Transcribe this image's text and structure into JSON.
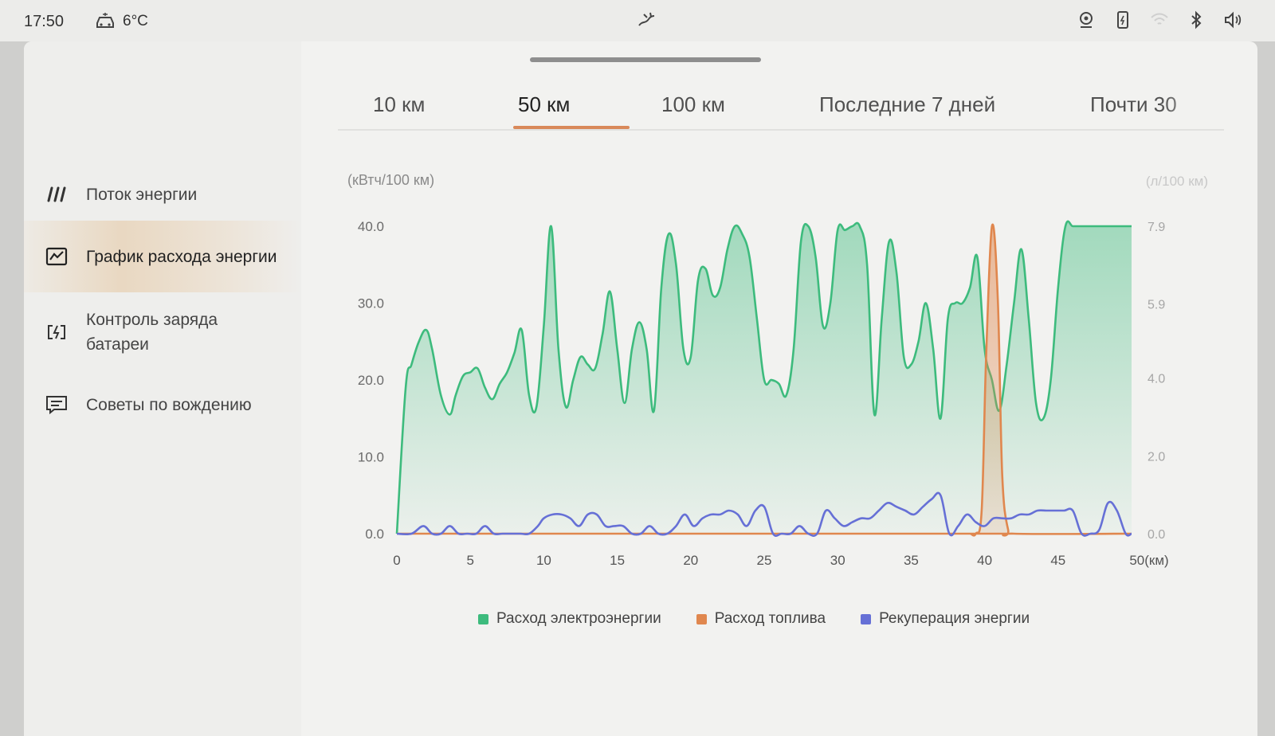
{
  "status_bar": {
    "time": "17:50",
    "temperature": "6°C",
    "icons": [
      "car-icon",
      "fan-icon",
      "camera-icon",
      "phone-battery-icon",
      "wifi-icon",
      "bluetooth-icon",
      "volume-icon"
    ]
  },
  "sidebar": {
    "items": [
      {
        "label": "Поток энергии",
        "icon": "energy-flow-icon",
        "active": false
      },
      {
        "label": "График расхода энергии",
        "icon": "chart-icon",
        "active": true
      },
      {
        "label": "Контроль заряда батареи",
        "icon": "battery-charge-icon",
        "active": false
      },
      {
        "label": "Советы по вождению",
        "icon": "tips-message-icon",
        "active": false
      }
    ]
  },
  "tabs": [
    {
      "label": "10 км",
      "active": false
    },
    {
      "label": "50 км",
      "active": true
    },
    {
      "label": "100 км",
      "active": false
    },
    {
      "label": "Последние 7 дней",
      "active": false
    },
    {
      "label": "Почти 30",
      "active": false
    }
  ],
  "colors": {
    "electric": "#3dbb7d",
    "fuel": "#e0874e",
    "regen": "#6670d6",
    "accent": "#d9895a"
  },
  "chart_data": {
    "type": "line",
    "left_unit": "(кВтч/100 км)",
    "right_unit": "(л/100 км)",
    "x_unit": "(км)",
    "xlim": [
      0,
      50
    ],
    "ylim_left": [
      0,
      40
    ],
    "ylim_right": [
      0,
      7.9
    ],
    "x_ticks": [
      0,
      5,
      10,
      15,
      20,
      25,
      30,
      35,
      40,
      45,
      50
    ],
    "x_tick_labels": [
      "0",
      "5",
      "10",
      "15",
      "20",
      "25",
      "30",
      "35",
      "40",
      "45",
      "50(км)"
    ],
    "y_ticks_left": [
      "0.0",
      "10.0",
      "20.0",
      "30.0",
      "40.0"
    ],
    "y_ticks_right": [
      "0.0",
      "2.0",
      "4.0",
      "5.9",
      "7.9"
    ],
    "grid": false,
    "legend_position": "bottom",
    "series": [
      {
        "name": "Расход электроэнергии",
        "axis": "left",
        "x": [
          0,
          0.6,
          1.0,
          1.5,
          2.0,
          2.4,
          3.0,
          3.6,
          4.0,
          4.5,
          5.0,
          5.5,
          6.0,
          6.5,
          7.0,
          7.5,
          8.0,
          8.5,
          9.0,
          9.5,
          10.0,
          10.5,
          11.0,
          11.5,
          12.0,
          12.5,
          13.0,
          13.5,
          14.0,
          14.5,
          15.0,
          15.5,
          16.0,
          16.5,
          17.0,
          17.5,
          18.0,
          18.5,
          19.0,
          19.5,
          20.0,
          20.5,
          21.0,
          21.5,
          22.0,
          22.5,
          23.0,
          23.5,
          24.0,
          24.5,
          25.0,
          25.5,
          26.0,
          26.5,
          27.0,
          27.5,
          28.0,
          28.5,
          29.0,
          29.5,
          30.0,
          30.5,
          31.0,
          31.5,
          32.0,
          32.5,
          33.0,
          33.5,
          34.0,
          34.5,
          35.0,
          35.5,
          36.0,
          36.5,
          37.0,
          37.5,
          38.0,
          38.5,
          39.0,
          39.5,
          40.0,
          40.5,
          41.0,
          41.5,
          42.0,
          42.5,
          43.0,
          43.5,
          44.0,
          44.5,
          45.0,
          45.5,
          46.0,
          46.5,
          47.0,
          47.5,
          48.0,
          48.5,
          49.0,
          49.5,
          50.0
        ],
        "values": [
          0,
          19,
          22,
          25,
          26.5,
          24,
          18,
          15.5,
          18,
          20.5,
          21,
          21.5,
          19,
          17.5,
          19.5,
          21,
          23.5,
          26.5,
          18,
          16.5,
          27,
          40,
          24,
          16.5,
          20,
          23,
          22,
          21.5,
          26,
          31.5,
          24,
          17,
          24,
          27.5,
          24,
          16,
          32,
          39,
          35,
          24,
          23,
          33,
          34.5,
          31,
          32,
          37,
          40,
          39,
          36,
          28,
          20,
          20,
          19.5,
          18,
          24,
          38,
          40,
          36,
          27,
          30,
          39.5,
          39.5,
          40,
          40,
          35,
          15.5,
          28,
          38,
          34,
          23,
          22,
          25,
          30,
          24,
          15,
          28,
          30,
          30,
          32,
          36,
          24,
          20,
          16,
          22,
          30,
          37,
          28,
          17,
          15,
          20,
          32,
          40,
          40,
          40,
          40,
          40,
          40,
          40,
          40,
          40,
          40
        ]
      },
      {
        "name": "Расход топлива",
        "axis": "right",
        "x": [
          0,
          38.5,
          39.0,
          39.4,
          39.8,
          40.1,
          40.5,
          40.9,
          41.2,
          41.6,
          42.0,
          50.0
        ],
        "values": [
          0,
          0,
          0,
          0,
          0.6,
          4.5,
          7.9,
          6.0,
          1.5,
          0.1,
          0,
          0
        ]
      },
      {
        "name": "Рекуперация энергии",
        "axis": "left",
        "x": [
          0,
          1.0,
          1.8,
          2.4,
          3.0,
          3.6,
          4.2,
          4.8,
          5.4,
          6.0,
          6.6,
          7.2,
          7.8,
          8.4,
          9.0,
          9.6,
          10.0,
          10.6,
          11.2,
          11.8,
          12.4,
          13.0,
          13.6,
          14.2,
          14.8,
          15.4,
          16.0,
          16.6,
          17.2,
          17.8,
          18.4,
          19.0,
          19.6,
          20.2,
          20.8,
          21.4,
          22.0,
          22.6,
          23.2,
          23.8,
          24.4,
          25.0,
          25.6,
          26.2,
          26.8,
          27.4,
          28.0,
          28.6,
          29.2,
          29.8,
          30.4,
          31.0,
          31.6,
          32.2,
          32.8,
          33.4,
          34.0,
          34.6,
          35.2,
          35.8,
          36.4,
          37.0,
          37.6,
          38.2,
          38.8,
          39.4,
          40.0,
          40.6,
          41.2,
          41.8,
          42.4,
          43.0,
          43.6,
          44.2,
          44.8,
          45.4,
          46.0,
          46.6,
          47.2,
          47.8,
          48.4,
          49.0,
          49.6,
          50.0
        ],
        "values": [
          0,
          0,
          1,
          0,
          0,
          1,
          0,
          0,
          0,
          1,
          0,
          0,
          0,
          0,
          0,
          1,
          2,
          2.5,
          2.5,
          2,
          1,
          2.5,
          2.5,
          1,
          1,
          1,
          0,
          0,
          1,
          0,
          0,
          1,
          2.5,
          1,
          2,
          2.5,
          2.5,
          3,
          2.5,
          1,
          3,
          3.5,
          0,
          0,
          0,
          1,
          0,
          0,
          3,
          2,
          1,
          1.5,
          2,
          2,
          3,
          4,
          3.5,
          3,
          2.5,
          3.5,
          4.5,
          5,
          0,
          1,
          2.5,
          1.5,
          1,
          2,
          2,
          2,
          2.5,
          2.5,
          3,
          3,
          3,
          3,
          3,
          0,
          0,
          0.5,
          4,
          3,
          0,
          0
        ]
      }
    ]
  }
}
